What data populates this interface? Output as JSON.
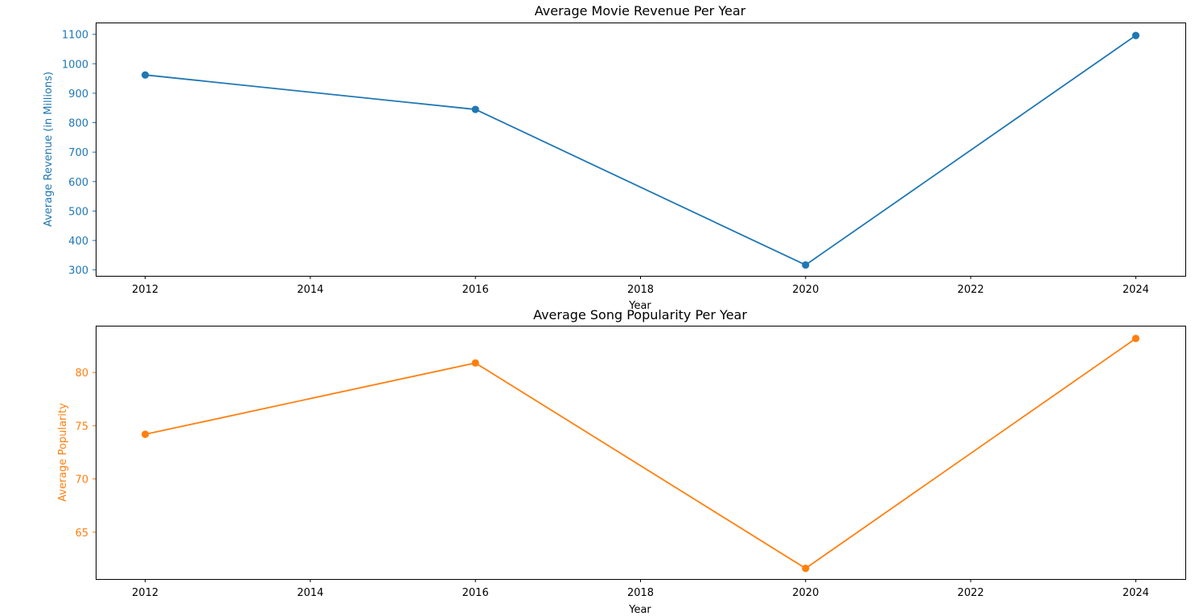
{
  "chart_data": [
    {
      "type": "line",
      "title": "Average Movie Revenue Per Year",
      "xlabel": "Year",
      "ylabel": "Average Revenue (in Millions)",
      "xlim": [
        2011.4,
        2024.6
      ],
      "ylim": [
        280,
        1140
      ],
      "xticks": [
        2012,
        2014,
        2016,
        2018,
        2020,
        2022,
        2024
      ],
      "yticks": [
        300,
        400,
        500,
        600,
        700,
        800,
        900,
        1000,
        1100
      ],
      "grid": false,
      "color": "#1f77b4",
      "series": [
        {
          "x": [
            2012,
            2016,
            2020,
            2024
          ],
          "values": [
            962,
            845,
            317,
            1096
          ]
        }
      ]
    },
    {
      "type": "line",
      "title": "Average Song Popularity Per Year",
      "xlabel": "Year",
      "ylabel": "Average Popularity",
      "xlim": [
        2011.4,
        2024.6
      ],
      "ylim": [
        60.6,
        84.4
      ],
      "xticks": [
        2012,
        2014,
        2016,
        2018,
        2020,
        2022,
        2024
      ],
      "yticks": [
        65,
        70,
        75,
        80
      ],
      "grid": false,
      "color": "#ff7f0e",
      "series": [
        {
          "x": [
            2012,
            2016,
            2020,
            2024
          ],
          "values": [
            74.2,
            80.9,
            61.6,
            83.2
          ]
        }
      ]
    }
  ]
}
